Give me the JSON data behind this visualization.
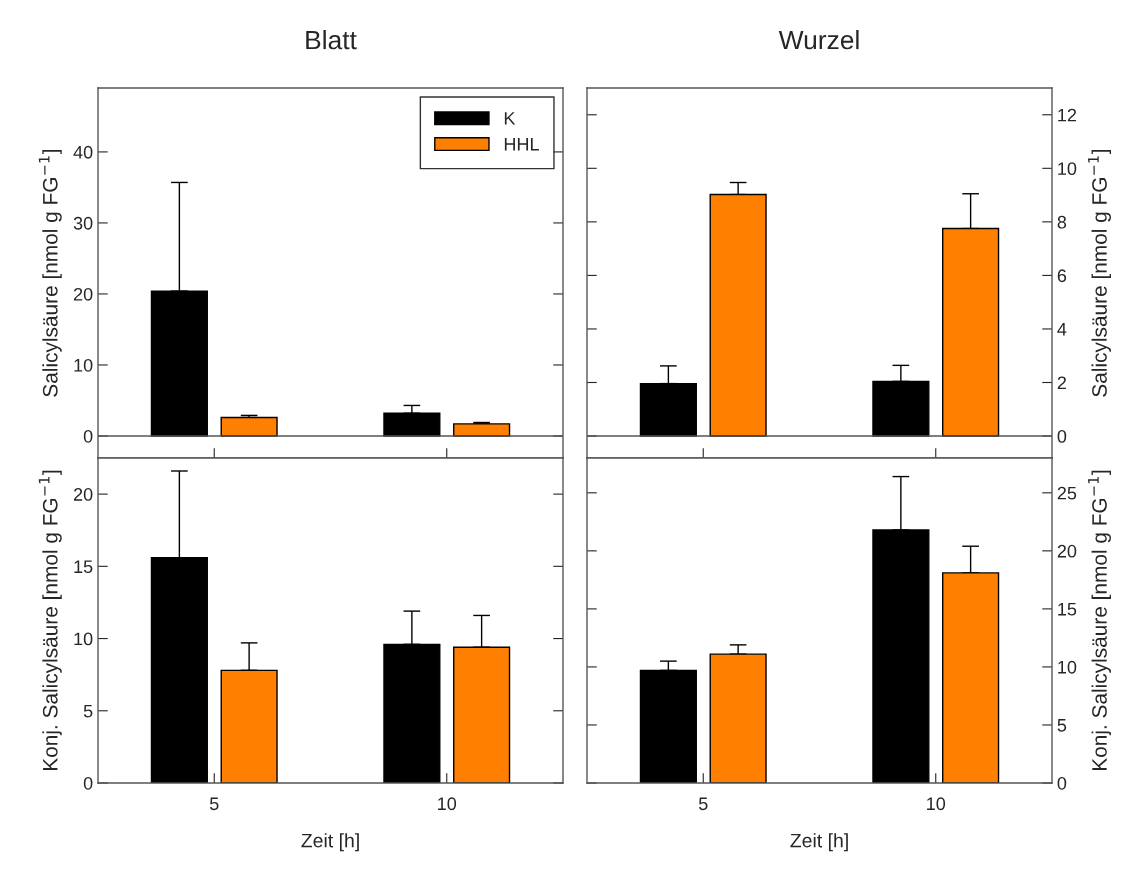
{
  "chart_data": [
    {
      "type": "bar",
      "title": "Blatt",
      "ylabel": "Salicylsäure [nmol g FG$^{−1}$]",
      "categories": [
        "5",
        "10"
      ],
      "ylim": [
        -3.1,
        49
      ],
      "yticks": [
        0,
        10,
        20,
        30,
        40
      ],
      "tick_labels": "y",
      "legend": "top right",
      "grid": false,
      "ref_lines": [
        {
          "axis": "y",
          "value": 0
        }
      ],
      "series": [
        {
          "name": "K",
          "color": "#000000",
          "values": [
            20.4,
            3.2
          ],
          "errors": [
            [
              20.4,
              35.7
            ],
            [
              3.2,
              4.3
            ]
          ]
        },
        {
          "name": "HHL",
          "color": "#ff8000",
          "values": [
            2.6,
            1.7
          ],
          "errors": [
            [
              2.6,
              2.9
            ],
            [
              1.7,
              1.9
            ]
          ]
        }
      ]
    },
    {
      "type": "bar",
      "title": "Wurzel",
      "ylabel": "Salicylsäure [nmol g FG$^{−1}$]",
      "categories": [
        "5",
        "10"
      ],
      "ylim": [
        -0.82,
        13
      ],
      "yticks": [
        0,
        2,
        4,
        6,
        8,
        10,
        12
      ],
      "tick_labels": "y",
      "grid": false,
      "ref_lines": [
        {
          "axis": "y",
          "value": 0
        }
      ],
      "series": [
        {
          "color": "#000000",
          "values": [
            1.96,
            2.04
          ],
          "errors": [
            [
              1.96,
              2.62
            ],
            [
              2.04,
              2.64
            ]
          ]
        },
        {
          "color": "#ff8000",
          "values": [
            9.02,
            7.75
          ],
          "errors": [
            [
              9.02,
              9.47
            ],
            [
              7.75,
              9.05
            ]
          ]
        }
      ]
    },
    {
      "type": "bar",
      "xlabel": "Zeit [h]",
      "ylabel": "Konj. Salicylsäure [nmol g FG$^{−1}$]",
      "categories": [
        "5",
        "10"
      ],
      "ylim": [
        0,
        22.5
      ],
      "yticks": [
        0,
        5,
        10,
        15,
        20
      ],
      "grid": false,
      "series": [
        {
          "color": "#000000",
          "values": [
            15.6,
            9.6
          ],
          "errors": [
            [
              15.6,
              21.6
            ],
            [
              9.6,
              11.9
            ]
          ]
        },
        {
          "color": "#ff8000",
          "values": [
            7.8,
            9.4
          ],
          "errors": [
            [
              7.8,
              9.7
            ],
            [
              9.4,
              11.6
            ]
          ]
        }
      ]
    },
    {
      "type": "bar",
      "xlabel": "Zeit [h]",
      "ylabel": "Konj. Salicylsäure [nmol g FG$^{−1}$]",
      "categories": [
        "5",
        "10"
      ],
      "ylim": [
        0,
        28
      ],
      "yticks": [
        0,
        5,
        10,
        15,
        20,
        25
      ],
      "grid": false,
      "series": [
        {
          "color": "#000000",
          "values": [
            9.7,
            21.8
          ],
          "errors": [
            [
              9.7,
              10.5
            ],
            [
              21.8,
              26.4
            ]
          ]
        },
        {
          "color": "#ff8000",
          "values": [
            11.1,
            18.1
          ],
          "errors": [
            [
              11.1,
              11.9
            ],
            [
              18.1,
              20.4
            ]
          ]
        }
      ]
    }
  ]
}
